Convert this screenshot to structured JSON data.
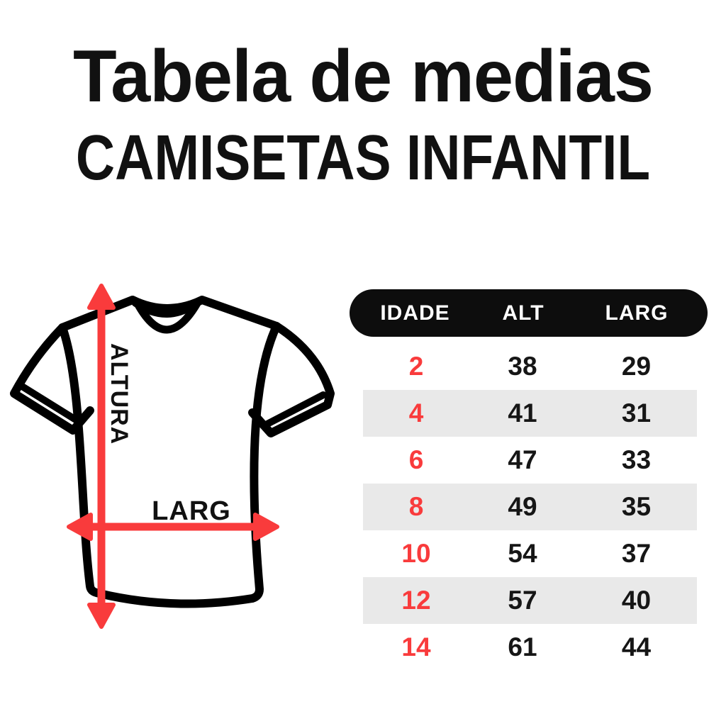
{
  "title": {
    "line1": "Tabela de medias",
    "line2": "CAMISETAS INFANTIL"
  },
  "diagram": {
    "height_label": "ALTURA",
    "width_label": "LARG"
  },
  "size_table": {
    "columns": [
      "IDADE",
      "ALT",
      "LARG"
    ],
    "rows": [
      {
        "idade": "2",
        "alt": "38",
        "larg": "29"
      },
      {
        "idade": "4",
        "alt": "41",
        "larg": "31"
      },
      {
        "idade": "6",
        "alt": "47",
        "larg": "33"
      },
      {
        "idade": "8",
        "alt": "49",
        "larg": "35"
      },
      {
        "idade": "10",
        "alt": "54",
        "larg": "37"
      },
      {
        "idade": "12",
        "alt": "57",
        "larg": "40"
      },
      {
        "idade": "14",
        "alt": "61",
        "larg": "44"
      }
    ]
  },
  "colors": {
    "accent_red": "#f93b3c",
    "ink": "#111111",
    "header_bg": "#0d0d0d",
    "header_fg": "#ffffff",
    "row_alt_bg": "#e9e9e9",
    "value_ink": "#161616"
  },
  "chart_data": {
    "type": "table",
    "title": "Tabela de medias — CAMISETAS INFANTIL",
    "columns": [
      "IDADE",
      "ALT",
      "LARG"
    ],
    "rows": [
      [
        2,
        38,
        29
      ],
      [
        4,
        41,
        31
      ],
      [
        6,
        47,
        33
      ],
      [
        8,
        49,
        35
      ],
      [
        10,
        54,
        37
      ],
      [
        12,
        57,
        40
      ],
      [
        14,
        61,
        44
      ]
    ],
    "notes": "ALT = altura (height) arrow, LARG = largura (width) arrow shown on t-shirt diagram"
  }
}
